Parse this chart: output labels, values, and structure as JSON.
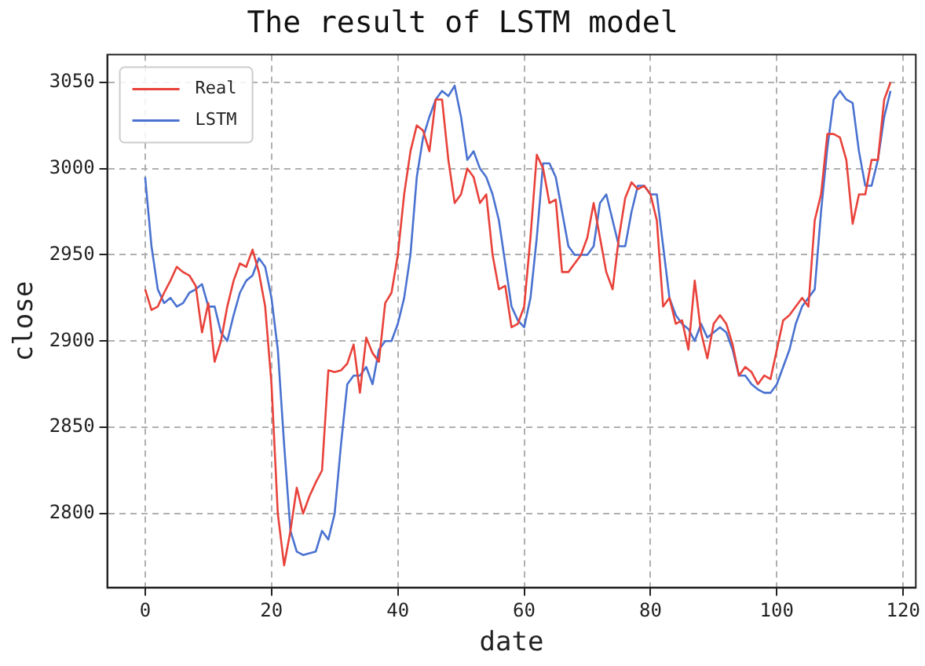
{
  "chart_data": {
    "type": "line",
    "title": "The result of LSTM model",
    "xlabel": "date",
    "ylabel": "close",
    "x": [
      0,
      1,
      2,
      3,
      4,
      5,
      6,
      7,
      8,
      9,
      10,
      11,
      12,
      13,
      14,
      15,
      16,
      17,
      18,
      19,
      20,
      21,
      22,
      23,
      24,
      25,
      26,
      27,
      28,
      29,
      30,
      31,
      32,
      33,
      34,
      35,
      36,
      37,
      38,
      39,
      40,
      41,
      42,
      43,
      44,
      45,
      46,
      47,
      48,
      49,
      50,
      51,
      52,
      53,
      54,
      55,
      56,
      57,
      58,
      59,
      60,
      61,
      62,
      63,
      64,
      65,
      66,
      67,
      68,
      69,
      70,
      71,
      72,
      73,
      74,
      75,
      76,
      77,
      78,
      79,
      80,
      81,
      82,
      83,
      84,
      85,
      86,
      87,
      88,
      89,
      90,
      91,
      92,
      93,
      94,
      95,
      96,
      97,
      98,
      99,
      100,
      101,
      102,
      103,
      104,
      105,
      106,
      107,
      108,
      109,
      110,
      111,
      112,
      113,
      114,
      115,
      116,
      117,
      118
    ],
    "series": [
      {
        "name": "Real",
        "color": "#e8423a",
        "values": [
          2930,
          2918,
          2920,
          2928,
          2935,
          2943,
          2940,
          2938,
          2932,
          2905,
          2922,
          2888,
          2900,
          2920,
          2935,
          2945,
          2943,
          2953,
          2940,
          2920,
          2875,
          2800,
          2770,
          2790,
          2815,
          2800,
          2810,
          2818,
          2825,
          2883,
          2882,
          2883,
          2887,
          2898,
          2870,
          2902,
          2893,
          2888,
          2922,
          2928,
          2950,
          2985,
          3010,
          3025,
          3022,
          3010,
          3040,
          3040,
          3005,
          2980,
          2985,
          3000,
          2995,
          2980,
          2985,
          2950,
          2930,
          2932,
          2908,
          2910,
          2920,
          2960,
          3008,
          3000,
          2980,
          2982,
          2940,
          2940,
          2945,
          2950,
          2960,
          2980,
          2960,
          2940,
          2930,
          2960,
          2983,
          2992,
          2988,
          2990,
          2985,
          2970,
          2920,
          2925,
          2910,
          2912,
          2895,
          2935,
          2905,
          2890,
          2910,
          2915,
          2910,
          2898,
          2880,
          2885,
          2882,
          2875,
          2880,
          2878,
          2895,
          2912,
          2915,
          2920,
          2925,
          2920,
          2970,
          2985,
          3020,
          3020,
          3018,
          3005,
          2968,
          2985,
          2985,
          3005,
          3005,
          3040,
          3050
        ]
      },
      {
        "name": "LSTM",
        "color": "#4a72d0",
        "values": [
          2995,
          2955,
          2930,
          2922,
          2925,
          2920,
          2922,
          2928,
          2930,
          2933,
          2920,
          2920,
          2905,
          2900,
          2915,
          2928,
          2935,
          2938,
          2948,
          2943,
          2925,
          2895,
          2840,
          2790,
          2778,
          2776,
          2777,
          2778,
          2790,
          2785,
          2800,
          2840,
          2875,
          2880,
          2880,
          2885,
          2875,
          2895,
          2900,
          2900,
          2910,
          2925,
          2950,
          2995,
          3018,
          3030,
          3040,
          3045,
          3042,
          3048,
          3030,
          3005,
          3010,
          3000,
          2995,
          2985,
          2970,
          2945,
          2920,
          2912,
          2908,
          2925,
          2960,
          3003,
          3003,
          2995,
          2975,
          2955,
          2950,
          2950,
          2950,
          2955,
          2980,
          2985,
          2970,
          2955,
          2955,
          2975,
          2990,
          2990,
          2985,
          2985,
          2955,
          2925,
          2915,
          2910,
          2907,
          2900,
          2910,
          2902,
          2905,
          2908,
          2905,
          2895,
          2880,
          2880,
          2875,
          2872,
          2870,
          2870,
          2875,
          2885,
          2895,
          2910,
          2920,
          2925,
          2930,
          2975,
          3012,
          3040,
          3045,
          3040,
          3038,
          3010,
          2990,
          2990,
          3005,
          3030,
          3045
        ]
      }
    ],
    "xlim": [
      -6,
      122
    ],
    "xticks": [
      0,
      20,
      40,
      60,
      80,
      100,
      120
    ],
    "ylim": [
      2757,
      3066
    ],
    "yticks": [
      2800,
      2850,
      2900,
      2950,
      3000,
      3050
    ],
    "grid": true,
    "legend": "top left",
    "marker": "none",
    "line_style": "solid"
  }
}
